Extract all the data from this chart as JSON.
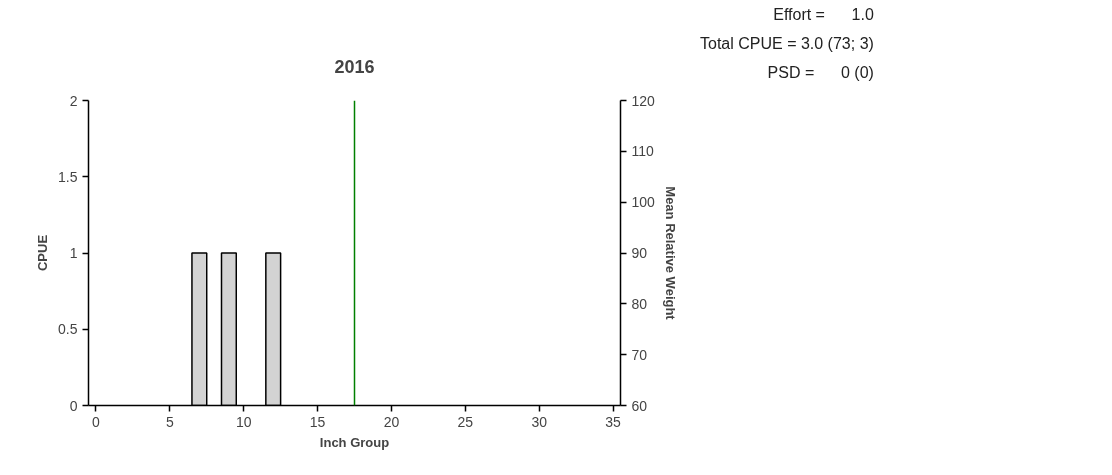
{
  "chart_data": {
    "type": "bar",
    "title": "2016",
    "xlabel": "Inch Group",
    "ylabel": "CPUE",
    "y2label": "Mean Relative Weight",
    "x": [
      7,
      9,
      12
    ],
    "values": [
      1,
      1,
      1
    ],
    "color": "#d3d3d3",
    "xlim": [
      -0.5,
      35.5
    ],
    "xticks": [
      0,
      5,
      10,
      15,
      20,
      25,
      30,
      35
    ],
    "ylim": [
      0,
      2
    ],
    "yticks": [
      0,
      0.5,
      1,
      1.5,
      2
    ],
    "y2lim": [
      60,
      120
    ],
    "y2ticks": [
      60,
      70,
      80,
      90,
      100,
      110,
      120
    ],
    "ref_lines": [
      {
        "axis": "x",
        "value": 17.5,
        "color": "#008000"
      }
    ],
    "annotations": [
      "Effort =      1.0",
      "Total CPUE = 3.0 (73; 3)",
      "PSD =      0 (0)"
    ],
    "grid": false
  }
}
